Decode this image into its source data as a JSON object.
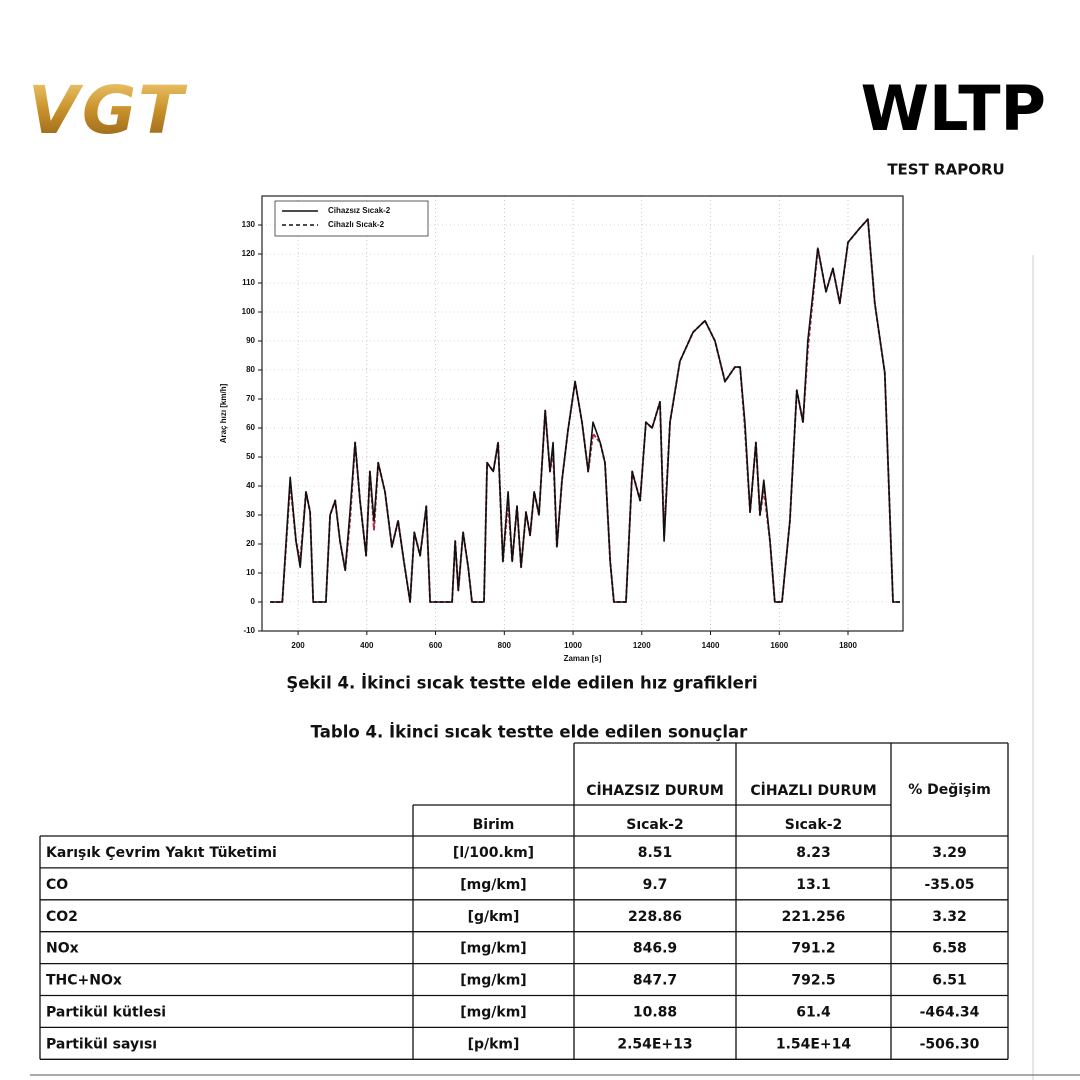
{
  "report": {
    "logo": "VGT",
    "title": "WLTP",
    "subtitle": "TEST RAPORU"
  },
  "chart_data": {
    "type": "line",
    "xlabel": "Zaman [s]",
    "ylabel": "Araç hızı [km/h]",
    "x": [
      119,
      154,
      177,
      194,
      206,
      223,
      235,
      244,
      281,
      293,
      308,
      322,
      337,
      351,
      366,
      380,
      398,
      409,
      421,
      433,
      453,
      473,
      491,
      508,
      526,
      538,
      555,
      573,
      584,
      648,
      657,
      666,
      680,
      695,
      706,
      741,
      750,
      768,
      782,
      796,
      811,
      823,
      837,
      849,
      863,
      875,
      887,
      901,
      919,
      933,
      942,
      953,
      968,
      985,
      1006,
      1026,
      1044,
      1058,
      1079,
      1093,
      1108,
      1119,
      1154,
      1172,
      1195,
      1212,
      1230,
      1253,
      1265,
      1282,
      1311,
      1349,
      1384,
      1413,
      1442,
      1471,
      1486,
      1500,
      1515,
      1532,
      1544,
      1555,
      1573,
      1587,
      1608,
      1631,
      1651,
      1669,
      1683,
      1712,
      1736,
      1756,
      1776,
      1800,
      1835,
      1858,
      1878,
      1907,
      1931,
      1951
    ],
    "series": [
      {
        "name": "Cihazsız Sıcak-2",
        "color": "#111111",
        "dash": false,
        "values": [
          0,
          0,
          43,
          21,
          12,
          38,
          31,
          0,
          0,
          30,
          35,
          21,
          11,
          31,
          55,
          35,
          16,
          45,
          28,
          48,
          38,
          19,
          28,
          14,
          0,
          24,
          16,
          33,
          0,
          0,
          21,
          4,
          24,
          12,
          0,
          0,
          48,
          45,
          55,
          14,
          38,
          14,
          33,
          12,
          31,
          23,
          38,
          30,
          66,
          45,
          55,
          19,
          42,
          59,
          76,
          62,
          45,
          62,
          55,
          48,
          14,
          0,
          0,
          45,
          35,
          62,
          60,
          69,
          21,
          62,
          83,
          93,
          97,
          90,
          76,
          81,
          81,
          62,
          31,
          55,
          30,
          42,
          21,
          0,
          0,
          28,
          73,
          62,
          90,
          122,
          107,
          115,
          103,
          124,
          129,
          132,
          103,
          79,
          0,
          0
        ]
      },
      {
        "name": "Cihazlı Sıcak-2",
        "color": "#b0283f",
        "dash": true,
        "values": [
          0,
          0,
          41,
          21,
          14,
          38,
          31,
          0,
          0,
          30,
          35,
          21,
          11,
          28,
          55,
          35,
          16,
          45,
          25,
          48,
          38,
          19,
          28,
          14,
          0,
          24,
          16,
          33,
          0,
          0,
          21,
          4,
          24,
          12,
          0,
          0,
          48,
          45,
          55,
          14,
          35,
          14,
          33,
          12,
          31,
          23,
          38,
          30,
          66,
          45,
          52,
          19,
          42,
          59,
          76,
          62,
          45,
          58,
          55,
          48,
          14,
          0,
          0,
          45,
          35,
          62,
          60,
          69,
          23,
          62,
          83,
          93,
          97,
          90,
          76,
          81,
          81,
          60,
          31,
          55,
          30,
          39,
          21,
          0,
          0,
          28,
          73,
          62,
          87,
          122,
          107,
          115,
          103,
          124,
          129,
          132,
          103,
          79,
          0,
          0
        ]
      }
    ],
    "xlim": [
      95,
      1960
    ],
    "ylim": [
      -10,
      140
    ],
    "xticks": [
      200,
      400,
      600,
      800,
      1000,
      1200,
      1400,
      1600,
      1800
    ],
    "yticks": [
      -10,
      0,
      10,
      20,
      30,
      40,
      50,
      60,
      70,
      80,
      90,
      100,
      110,
      120,
      130
    ],
    "grid": true,
    "legend": "upper left"
  },
  "figure_caption": "Şekil 4. İkinci sıcak testte elde edilen hız grafikleri",
  "table": {
    "caption": "Tablo 4. İkinci sıcak testte elde edilen sonuçlar",
    "header": {
      "unit": "Birim",
      "groups": [
        {
          "title": "CİHAZSIZ DURUM",
          "sub": "Sıcak-2"
        },
        {
          "title": "CİHAZLI DURUM",
          "sub": "Sıcak-2"
        }
      ],
      "change": "% Değişim"
    },
    "rows": [
      [
        "Karışık Çevrim Yakıt Tüketimi",
        "[l/100.km]",
        "8.51",
        "8.23",
        "3.29"
      ],
      [
        "CO",
        "[mg/km]",
        "9.7",
        "13.1",
        "-35.05"
      ],
      [
        "CO2",
        "[g/km]",
        "228.86",
        "221.256",
        "3.32"
      ],
      [
        "NOx",
        "[mg/km]",
        "846.9",
        "791.2",
        "6.58"
      ],
      [
        "THC+NOx",
        "[mg/km]",
        "847.7",
        "792.5",
        "6.51"
      ],
      [
        "Partikül kütlesi",
        "[mg/km]",
        "10.88",
        "61.4",
        "-464.34"
      ],
      [
        "Partikül sayısı",
        "[p/km]",
        "2.54E+13",
        "1.54E+14",
        "-506.30"
      ]
    ]
  }
}
